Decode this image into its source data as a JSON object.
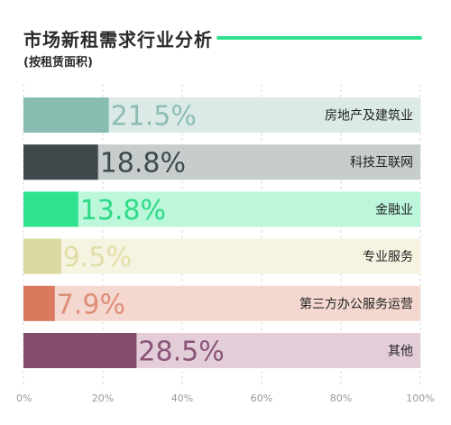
{
  "header": {
    "title": "市场新租需求行业分析",
    "subtitle": "(按租赁面积)",
    "accent_color": "#2fe38e"
  },
  "chart_data": {
    "type": "bar",
    "orientation": "horizontal",
    "title": "市场新租需求行业分析",
    "subtitle": "(按租赁面积)",
    "categories": [
      "房地产及建筑业",
      "科技互联网",
      "金融业",
      "专业服务",
      "第三方办公服务运营",
      "其他"
    ],
    "values": [
      21.5,
      18.8,
      13.8,
      9.5,
      7.9,
      28.5
    ],
    "value_labels": [
      "21.5%",
      "18.8%",
      "13.8%",
      "9.5%",
      "7.9%",
      "28.5%"
    ],
    "colors": [
      "#86bdb0",
      "#3f494b",
      "#2fe38e",
      "#d9d89e",
      "#d97a5f",
      "#844c6f"
    ],
    "track_colors": [
      "#dbeae7",
      "#c7cdcc",
      "#bcf7dc",
      "#f6f4e1",
      "#f4d8d0",
      "#e2cdd8"
    ],
    "label_colors": [
      "#8fbdb2",
      "#3f494b",
      "#2ddb86",
      "#e0dea8",
      "#de8e76",
      "#8a5577"
    ],
    "xlim": [
      0,
      100
    ],
    "xticks": [
      0,
      20,
      40,
      60,
      80,
      100
    ],
    "xtick_labels": [
      "0%",
      "20%",
      "40%",
      "60%",
      "80%",
      "100%"
    ],
    "grid": true
  }
}
